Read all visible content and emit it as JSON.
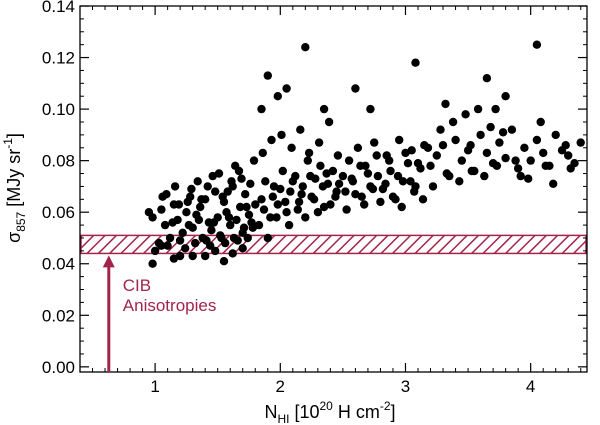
{
  "chart_data": {
    "type": "scatter",
    "xlabel": {
      "main": "N",
      "sub": "HI",
      "rest": " [10",
      "sup": "20",
      "rest2": " H cm",
      "sup2": "-2",
      "end": "]"
    },
    "ylabel": {
      "main": "σ",
      "sub": "857",
      "rest": " [MJy sr",
      "sup": "-1",
      "end": "]"
    },
    "xlim": [
      0.4,
      4.45
    ],
    "ylim": [
      -0.002,
      0.14
    ],
    "x_ticks": [
      {
        "value": 1,
        "label": "1"
      },
      {
        "value": 2,
        "label": "2"
      },
      {
        "value": 3,
        "label": "3"
      },
      {
        "value": 4,
        "label": "4"
      }
    ],
    "y_ticks": [
      {
        "value": 0.0,
        "label": "0.00"
      },
      {
        "value": 0.02,
        "label": "0.02"
      },
      {
        "value": 0.04,
        "label": "0.04"
      },
      {
        "value": 0.06,
        "label": "0.06"
      },
      {
        "value": 0.08,
        "label": "0.08"
      },
      {
        "value": 0.1,
        "label": "0.10"
      },
      {
        "value": 0.12,
        "label": "0.12"
      },
      {
        "value": 0.14,
        "label": "0.14"
      }
    ],
    "band": {
      "ymin": 0.044,
      "ymax": 0.051,
      "color": "#a3244b"
    },
    "annotation": {
      "lines": [
        "CIB",
        "Anisotropies"
      ],
      "arrow_x": 0.63,
      "arrow_from": -0.002,
      "arrow_to": 0.044,
      "color": "#a3244b"
    },
    "point_color": "#000000",
    "x": [
      0.98,
      1.05,
      1.08,
      1.12,
      1.15,
      1.18,
      1.22,
      1.25,
      1.28,
      1.3,
      1.33,
      1.36,
      1.38,
      1.4,
      1.43,
      1.45,
      1.48,
      1.5,
      1.52,
      1.55,
      1.57,
      1.6,
      1.62,
      1.65,
      1.68,
      1.7,
      1.72,
      1.75,
      1.78,
      1.8,
      1.0,
      1.03,
      1.1,
      1.14,
      1.2,
      1.24,
      1.27,
      1.32,
      1.35,
      1.41,
      1.44,
      1.47,
      1.53,
      1.56,
      1.59,
      1.63,
      1.66,
      1.71,
      1.74,
      1.77,
      1.06,
      1.16,
      1.26,
      1.34,
      1.42,
      1.51,
      1.58,
      1.64,
      1.69,
      1.76,
      0.95,
      1.09,
      1.19,
      1.29,
      1.37,
      1.46,
      1.54,
      1.61,
      1.67,
      1.73,
      1.79,
      1.85,
      1.88,
      1.92,
      1.95,
      1.98,
      2.02,
      2.05,
      2.08,
      2.12,
      2.15,
      2.18,
      2.22,
      2.25,
      2.28,
      2.32,
      2.35,
      2.38,
      2.42,
      2.45,
      1.83,
      1.87,
      1.9,
      1.94,
      1.97,
      2.0,
      2.04,
      2.07,
      2.1,
      2.14,
      2.17,
      2.2,
      2.24,
      2.27,
      2.3,
      2.34,
      2.37,
      2.4,
      2.44,
      2.47,
      1.86,
      1.93,
      2.01,
      2.09,
      2.16,
      2.23,
      2.31,
      2.39,
      2.46,
      2.5,
      2.52,
      2.55,
      2.58,
      2.62,
      2.65,
      2.68,
      2.72,
      2.75,
      2.78,
      2.82,
      2.85,
      2.88,
      2.92,
      2.95,
      2.98,
      3.02,
      3.05,
      3.08,
      3.12,
      3.15,
      2.53,
      2.57,
      2.6,
      2.64,
      2.67,
      2.7,
      2.74,
      2.77,
      2.8,
      2.84,
      2.87,
      2.9,
      2.94,
      2.97,
      3.0,
      3.04,
      3.07,
      3.1,
      3.14,
      3.18,
      3.2,
      3.25,
      3.3,
      3.35,
      3.4,
      3.45,
      3.5,
      3.55,
      3.6,
      3.65,
      3.7,
      3.75,
      3.8,
      3.85,
      3.9,
      3.95,
      4.0,
      4.05,
      4.1,
      4.15,
      4.2,
      4.25,
      4.3,
      4.35,
      4.4,
      3.22,
      3.28,
      3.33,
      3.38,
      3.43,
      3.48,
      3.53,
      3.58,
      3.63,
      3.68,
      3.73,
      3.78,
      3.88,
      3.98,
      4.08,
      4.18,
      4.28,
      3.32,
      3.52,
      3.72,
      3.92,
      4.12,
      4.32,
      1.85,
      1.9,
      1.98,
      2.05,
      2.2,
      2.35,
      2.6,
      2.72,
      3.08,
      3.65,
      3.8,
      4.05,
      1.4,
      1.55,
      1.7,
      1.2,
      1.05,
      0.98,
      1.62,
      1.48,
      1.15,
      1.3
    ],
    "y": [
      0.058,
      0.061,
      0.055,
      0.05,
      0.063,
      0.057,
      0.052,
      0.06,
      0.066,
      0.054,
      0.059,
      0.062,
      0.05,
      0.065,
      0.056,
      0.053,
      0.068,
      0.058,
      0.051,
      0.064,
      0.06,
      0.055,
      0.07,
      0.057,
      0.062,
      0.052,
      0.067,
      0.059,
      0.054,
      0.063,
      0.045,
      0.048,
      0.047,
      0.056,
      0.049,
      0.046,
      0.055,
      0.048,
      0.057,
      0.049,
      0.047,
      0.056,
      0.05,
      0.048,
      0.058,
      0.05,
      0.049,
      0.054,
      0.05,
      0.056,
      0.066,
      0.07,
      0.064,
      0.072,
      0.07,
      0.075,
      0.068,
      0.078,
      0.073,
      0.071,
      0.06,
      0.067,
      0.063,
      0.069,
      0.065,
      0.074,
      0.066,
      0.072,
      0.076,
      0.062,
      0.08,
      0.065,
      0.072,
      0.058,
      0.07,
      0.063,
      0.076,
      0.06,
      0.068,
      0.074,
      0.064,
      0.07,
      0.08,
      0.066,
      0.073,
      0.078,
      0.062,
      0.071,
      0.076,
      0.068,
      0.055,
      0.061,
      0.05,
      0.066,
      0.058,
      0.069,
      0.064,
      0.055,
      0.072,
      0.061,
      0.067,
      0.058,
      0.074,
      0.065,
      0.06,
      0.07,
      0.075,
      0.063,
      0.066,
      0.071,
      0.083,
      0.088,
      0.09,
      0.085,
      0.092,
      0.083,
      0.087,
      0.095,
      0.082,
      0.074,
      0.068,
      0.08,
      0.072,
      0.085,
      0.066,
      0.078,
      0.07,
      0.087,
      0.074,
      0.069,
      0.082,
      0.076,
      0.065,
      0.088,
      0.072,
      0.079,
      0.084,
      0.07,
      0.077,
      0.086,
      0.061,
      0.073,
      0.067,
      0.078,
      0.063,
      0.075,
      0.069,
      0.082,
      0.064,
      0.071,
      0.08,
      0.066,
      0.074,
      0.062,
      0.083,
      0.072,
      0.068,
      0.079,
      0.065,
      0.085,
      0.078,
      0.082,
      0.086,
      0.074,
      0.088,
      0.08,
      0.084,
      0.076,
      0.09,
      0.083,
      0.079,
      0.087,
      0.081,
      0.092,
      0.077,
      0.085,
      0.08,
      0.088,
      0.083,
      0.078,
      0.09,
      0.084,
      0.082,
      0.079,
      0.087,
      0.07,
      0.092,
      0.075,
      0.095,
      0.072,
      0.098,
      0.076,
      0.1,
      0.074,
      0.093,
      0.078,
      0.091,
      0.08,
      0.073,
      0.095,
      0.071,
      0.086,
      0.102,
      0.086,
      0.1,
      0.074,
      0.078,
      0.077,
      0.1,
      0.113,
      0.105,
      0.108,
      0.124,
      0.1,
      0.108,
      0.1,
      0.118,
      0.112,
      0.105,
      0.125,
      0.043,
      0.041,
      0.046,
      0.043,
      0.047,
      0.04,
      0.044,
      0.045,
      0.042,
      0.043
    ]
  }
}
